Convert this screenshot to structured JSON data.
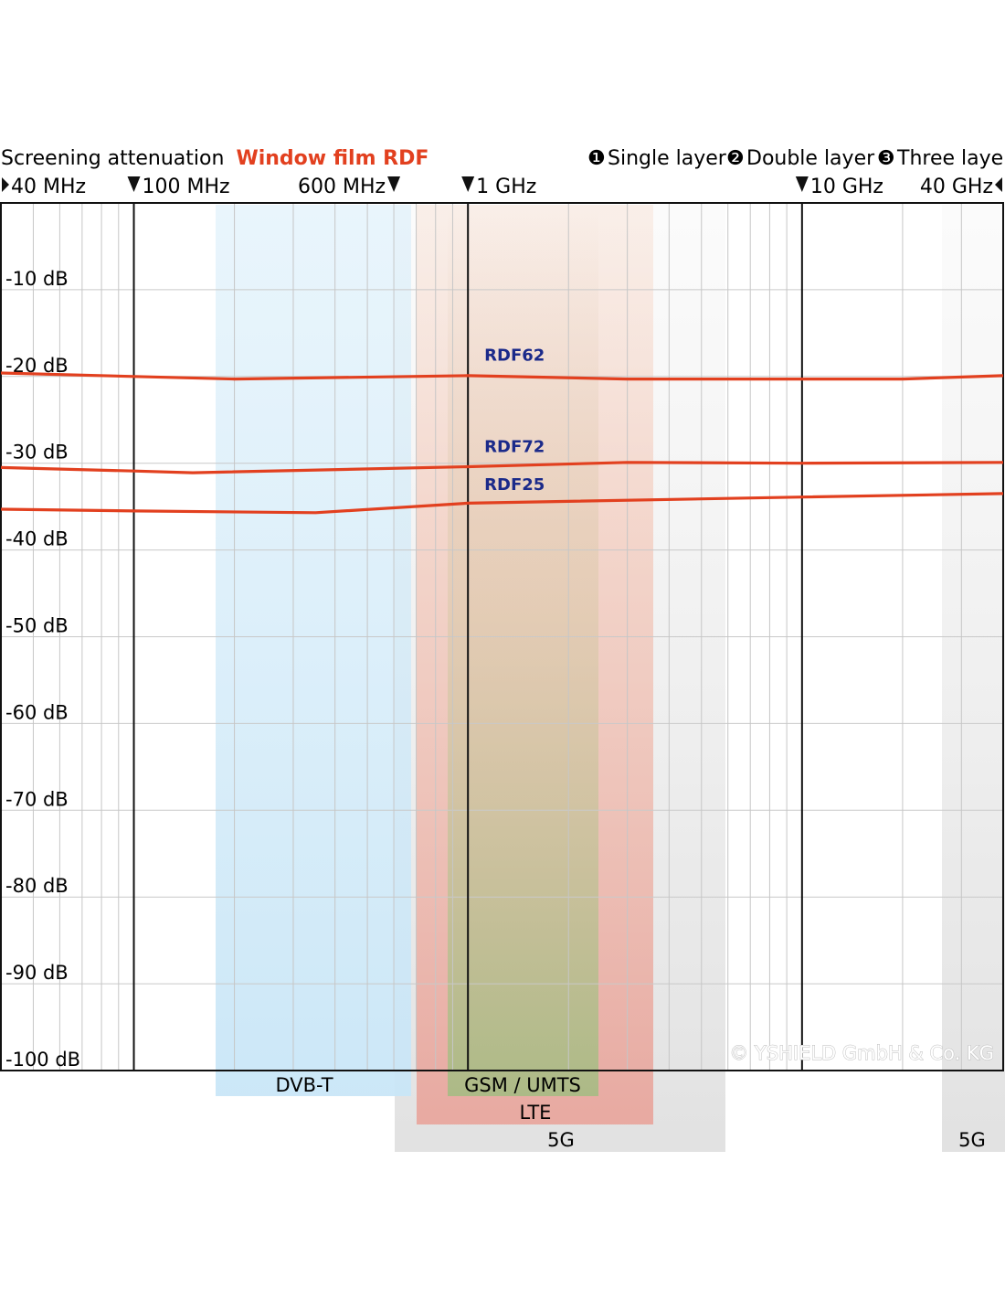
{
  "title": {
    "prefix": "Screening attenuation",
    "product": "Window film RDF",
    "product_color": "#e2401f",
    "layers": [
      {
        "marker": "❶",
        "label": "Single layer"
      },
      {
        "marker": "❷",
        "label": "Double layer"
      },
      {
        "marker": "❸",
        "label": "Three layer"
      }
    ]
  },
  "watermark": "© YSHIELD GmbH & Co. KG",
  "chart_data": {
    "type": "line",
    "x_scale": "log",
    "xlim_hz": [
      40000000,
      40000000000
    ],
    "ylim_db": [
      -100,
      0
    ],
    "grid": true,
    "x_markers": [
      {
        "label": "40 MHz",
        "hz": 40000000,
        "arrow": "right"
      },
      {
        "label": "100 MHz",
        "hz": 100000000,
        "arrow": "down-left"
      },
      {
        "label": "600 MHz",
        "hz": 600000000,
        "arrow": "down-right"
      },
      {
        "label": "1 GHz",
        "hz": 1000000000,
        "arrow": "down-left"
      },
      {
        "label": "10 GHz",
        "hz": 10000000000,
        "arrow": "down-left"
      },
      {
        "label": "40 GHz",
        "hz": 40000000000,
        "arrow": "left"
      }
    ],
    "y_ticks": [
      {
        "value": -10,
        "label": "-10 dB"
      },
      {
        "value": -20,
        "label": "-20 dB"
      },
      {
        "value": -30,
        "label": "-30 dB"
      },
      {
        "value": -40,
        "label": "-40 dB"
      },
      {
        "value": -50,
        "label": "-50 dB"
      },
      {
        "value": -60,
        "label": "-60 dB"
      },
      {
        "value": -70,
        "label": "-70 dB"
      },
      {
        "value": -80,
        "label": "-80 dB"
      },
      {
        "value": -90,
        "label": "-90 dB"
      },
      {
        "value": -100,
        "label": "-100 dB"
      }
    ],
    "series": [
      {
        "name": "RDF62",
        "color": "#e2401f",
        "label_color": "#1b2a8a",
        "points": [
          [
            40000000,
            -19.6
          ],
          [
            100000000,
            -20.0
          ],
          [
            200000000,
            -20.3
          ],
          [
            1000000000,
            -19.9
          ],
          [
            3000000000,
            -20.3
          ],
          [
            10000000000,
            -20.3
          ],
          [
            20000000000,
            -20.3
          ],
          [
            40000000000,
            -19.9
          ]
        ]
      },
      {
        "name": "RDF72",
        "color": "#e2401f",
        "label_color": "#1b2a8a",
        "points": [
          [
            40000000,
            -30.5
          ],
          [
            100000000,
            -30.9
          ],
          [
            150000000,
            -31.1
          ],
          [
            1000000000,
            -30.4
          ],
          [
            3000000000,
            -29.9
          ],
          [
            10000000000,
            -30.0
          ],
          [
            40000000000,
            -29.9
          ]
        ]
      },
      {
        "name": "RDF25",
        "color": "#e2401f",
        "label_color": "#1b2a8a",
        "points": [
          [
            40000000,
            -35.3
          ],
          [
            100000000,
            -35.5
          ],
          [
            350000000,
            -35.7
          ],
          [
            1000000000,
            -34.6
          ],
          [
            10000000000,
            -33.9
          ],
          [
            40000000000,
            -33.5
          ]
        ]
      }
    ],
    "bands": [
      {
        "label": "DVB-T",
        "color": "#cfe8f8"
      },
      {
        "label": "GSM / UMTS",
        "color": "#b7c28c"
      },
      {
        "label": "LTE",
        "color": "#e9a79f"
      },
      {
        "label": "5G",
        "color": "#e2e2e2"
      },
      {
        "label": "5G",
        "color": "#e2e2e2"
      }
    ]
  }
}
